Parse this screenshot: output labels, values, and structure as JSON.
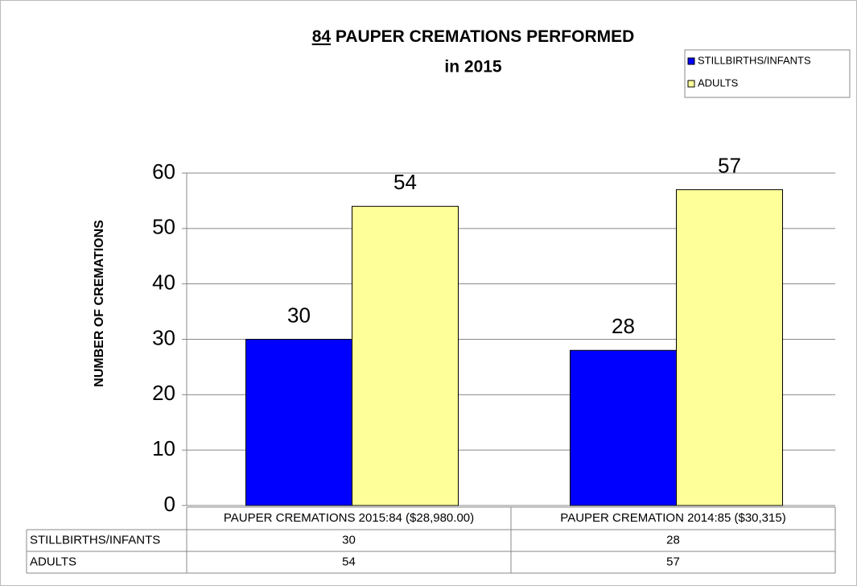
{
  "chart_data": {
    "type": "bar",
    "title": [
      "84",
      "PAUPER CREMATIONS  PERFORMED"
    ],
    "subtitle": "in 2015",
    "y_label": "NUMBER OF CREMATIONS",
    "categories": [
      "PAUPER CREMATIONS 2015:84 ($28,980.00)",
      "PAUPER CREMATION 2014:85 ($30,315)"
    ],
    "series": [
      {
        "name": "STILLBIRTHS/INFANTS",
        "color": "#0000ff",
        "values": [
          30,
          28
        ]
      },
      {
        "name": "ADULTS",
        "color": "#ffff99",
        "values": [
          54,
          57
        ]
      }
    ],
    "ylim": [
      0,
      60
    ],
    "yticks": [
      0,
      10,
      20,
      30,
      40,
      50,
      60
    ],
    "grid": true,
    "legend": "top-right",
    "data_table": true
  }
}
